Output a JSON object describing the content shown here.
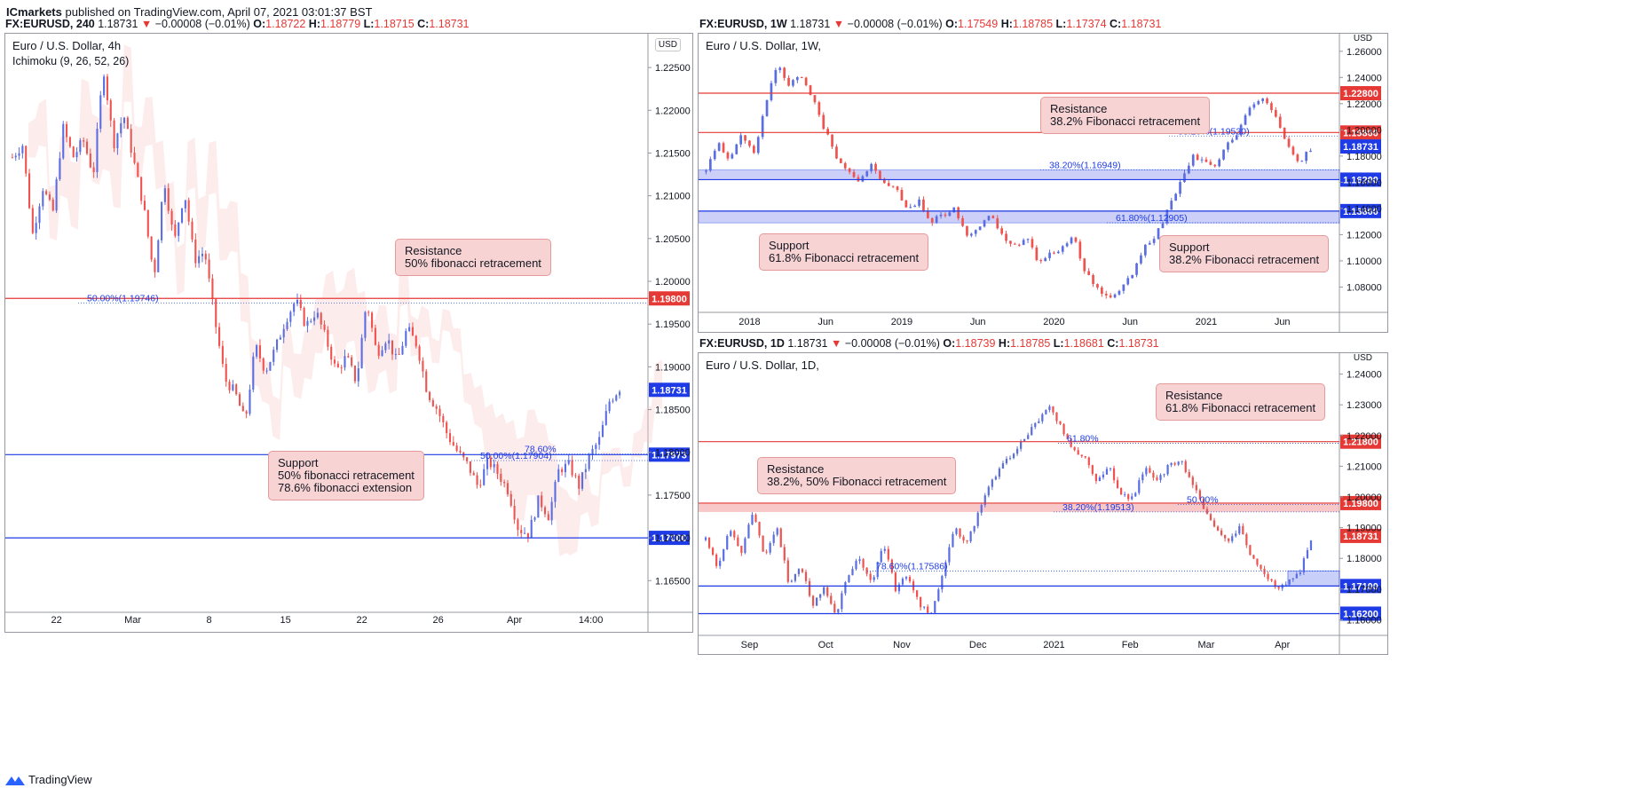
{
  "header": {
    "brand": "ICmarkets",
    "published": "published on TradingView.com, April 07, 2021 03:01:37 BST"
  },
  "footer": {
    "logo_text": "TradingView"
  },
  "colors": {
    "up": "#5b6ee1",
    "down": "#ef5350",
    "resistance": "#e53935",
    "support": "#1e3be6"
  },
  "panels": {
    "h4": {
      "symbol": "FX:EURUSD, 240",
      "price": "1.18731",
      "change": "−0.00008 (−0.01%)",
      "o": "1.18722",
      "h": "1.18779",
      "l": "1.18715",
      "c": "1.18731",
      "title": "Euro / U.S. Dollar, 4h",
      "indicator": "Ichimoku (9, 26, 52, 26)",
      "currency": "USD",
      "callouts": {
        "resistance": [
          "Resistance",
          "50% fibonacci retracement"
        ],
        "support": [
          "Support",
          "50% fibonacci retracement",
          "78.6% fibonacci extension"
        ]
      }
    },
    "w": {
      "symbol": "FX:EURUSD, 1W",
      "price": "1.18731",
      "change": "−0.00008 (−0.01%)",
      "o": "1.17549",
      "h": "1.18785",
      "l": "1.17374",
      "c": "1.18731",
      "title": "Euro / U.S. Dollar, 1W,",
      "currency": "USD",
      "callouts": {
        "resistance": [
          "Resistance",
          "38.2% Fibonacci retracement"
        ],
        "support1": [
          "Support",
          "61.8% Fibonacci retracement"
        ],
        "support2": [
          "Support",
          "38.2% Fibonacci retracement"
        ]
      }
    },
    "d": {
      "symbol": "FX:EURUSD, 1D",
      "price": "1.18731",
      "change": "−0.00008 (−0.01%)",
      "o": "1.18739",
      "h": "1.18785",
      "l": "1.18681",
      "c": "1.18731",
      "title": "Euro / U.S. Dollar, 1D,",
      "currency": "USD",
      "callouts": {
        "resistance1": [
          "Resistance",
          "61.8% Fibonacci retracement"
        ],
        "resistance2": [
          "Resistance",
          "38.2%, 50% Fibonacci retracement"
        ]
      }
    }
  },
  "chart_data": [
    {
      "type": "candlestick",
      "timeframe": "4h",
      "x_ticks": [
        "22",
        "Mar",
        "8",
        "15",
        "22",
        "26",
        "Apr",
        "14:00"
      ],
      "y_ticks": [
        "1.22500",
        "1.22000",
        "1.21500",
        "1.21000",
        "1.20500",
        "1.20000",
        "1.19500",
        "1.19000",
        "1.18500",
        "1.18000",
        "1.17500",
        "1.17000",
        "1.16500"
      ],
      "ylim": [
        1.1615,
        1.2275
      ],
      "path": [
        1.2145,
        1.216,
        1.2055,
        1.211,
        1.208,
        1.218,
        1.2145,
        1.2165,
        1.2125,
        1.225,
        1.216,
        1.2195,
        1.214,
        1.2085,
        1.2005,
        1.212,
        1.2045,
        1.2105,
        1.2025,
        1.2035,
        1.1955,
        1.1885,
        1.187,
        1.1835,
        1.1925,
        1.1895,
        1.1922,
        1.1955,
        1.1978,
        1.1948,
        1.1965,
        1.1932,
        1.1895,
        1.1912,
        1.1882,
        1.1978,
        1.1915,
        1.1935,
        1.1905,
        1.1945,
        1.1925,
        1.187,
        1.185,
        1.182,
        1.18,
        1.1785,
        1.176,
        1.179,
        1.1775,
        1.1755,
        1.171,
        1.1705,
        1.1745,
        1.1725,
        1.178,
        1.1785,
        1.176,
        1.1795,
        1.1815,
        1.186,
        1.1875
      ],
      "lines": [
        {
          "price": 1.198,
          "label": "1.19800",
          "kind": "resistance"
        },
        {
          "price": 1.17973,
          "label": "1.17973",
          "kind": "support"
        },
        {
          "price": 1.17,
          "label": "1.17000",
          "kind": "support"
        },
        {
          "price": 1.18731,
          "label": "1.18731",
          "kind": "current"
        }
      ],
      "fib_labels": [
        {
          "text": "50.00%(1.19746)",
          "price": 1.19746
        },
        {
          "text": "78.60%",
          "price": 1.1798
        },
        {
          "text": "50.00%(1.17904)",
          "price": 1.17904
        }
      ]
    },
    {
      "type": "candlestick",
      "timeframe": "1W",
      "x_ticks": [
        "2018",
        "Jun",
        "2019",
        "Jun",
        "2020",
        "Jun",
        "2021",
        "Jun"
      ],
      "y_ticks": [
        "1.26000",
        "1.24000",
        "1.22000",
        "1.20000",
        "1.18000",
        "1.16000",
        "1.14000",
        "1.12000",
        "1.10000",
        "1.08000"
      ],
      "ylim": [
        1.062,
        1.268
      ],
      "path": [
        1.168,
        1.19,
        1.175,
        1.198,
        1.18,
        1.22,
        1.25,
        1.235,
        1.24,
        1.225,
        1.2,
        1.18,
        1.17,
        1.16,
        1.175,
        1.158,
        1.155,
        1.14,
        1.145,
        1.13,
        1.135,
        1.14,
        1.12,
        1.125,
        1.135,
        1.12,
        1.11,
        1.12,
        1.1,
        1.105,
        1.11,
        1.12,
        1.09,
        1.08,
        1.07,
        1.08,
        1.09,
        1.11,
        1.12,
        1.14,
        1.16,
        1.18,
        1.175,
        1.17,
        1.19,
        1.2,
        1.22,
        1.225,
        1.21,
        1.19,
        1.175,
        1.185
      ],
      "lines": [
        {
          "price": 1.228,
          "label": "1.22800",
          "kind": "resistance"
        },
        {
          "price": 1.198,
          "label": "1.19800",
          "kind": "resistance"
        },
        {
          "price": 1.18731,
          "label": "1.18731",
          "kind": "current"
        },
        {
          "price": 1.162,
          "label": "1.16200",
          "kind": "support"
        },
        {
          "price": 1.138,
          "label": "1.13800",
          "kind": "support"
        }
      ],
      "fib_labels": [
        {
          "text": "38.20%(1.19530)",
          "price": 1.1953
        },
        {
          "text": "38.20%(1.16949)",
          "price": 1.16949
        },
        {
          "text": "61.80%(1.12905)",
          "price": 1.12905
        }
      ]
    },
    {
      "type": "candlestick",
      "timeframe": "1D",
      "x_ticks": [
        "Sep",
        "Oct",
        "Nov",
        "Dec",
        "2021",
        "Feb",
        "Mar",
        "Apr"
      ],
      "y_ticks": [
        "1.24000",
        "1.23000",
        "1.22000",
        "1.21000",
        "1.20000",
        "1.19000",
        "1.18000",
        "1.17000",
        "1.16000"
      ],
      "ylim": [
        1.1555,
        1.2445
      ],
      "path": [
        1.186,
        1.177,
        1.19,
        1.182,
        1.196,
        1.18,
        1.19,
        1.172,
        1.178,
        1.165,
        1.17,
        1.162,
        1.175,
        1.18,
        1.172,
        1.185,
        1.17,
        1.175,
        1.165,
        1.162,
        1.175,
        1.19,
        1.185,
        1.195,
        1.205,
        1.21,
        1.215,
        1.22,
        1.225,
        1.23,
        1.222,
        1.215,
        1.212,
        1.205,
        1.21,
        1.2,
        1.2,
        1.21,
        1.205,
        1.21,
        1.212,
        1.205,
        1.195,
        1.19,
        1.185,
        1.19,
        1.18,
        1.176,
        1.17,
        1.172,
        1.175,
        1.186
      ],
      "lines": [
        {
          "price": 1.218,
          "label": "1.21800",
          "kind": "resistance"
        },
        {
          "price": 1.198,
          "label": "1.19800",
          "kind": "resistance"
        },
        {
          "price": 1.18731,
          "label": "1.18731",
          "kind": "current"
        },
        {
          "price": 1.171,
          "label": "1.17100",
          "kind": "support"
        },
        {
          "price": 1.162,
          "label": "1.16200",
          "kind": "support"
        }
      ],
      "fib_labels": [
        {
          "text": "61.80%",
          "price": 1.2175
        },
        {
          "text": "50.00%",
          "price": 1.1975
        },
        {
          "text": "38.20%(1.19513)",
          "price": 1.19513
        },
        {
          "text": "78.60%(1.17586)",
          "price": 1.17586
        }
      ]
    }
  ]
}
